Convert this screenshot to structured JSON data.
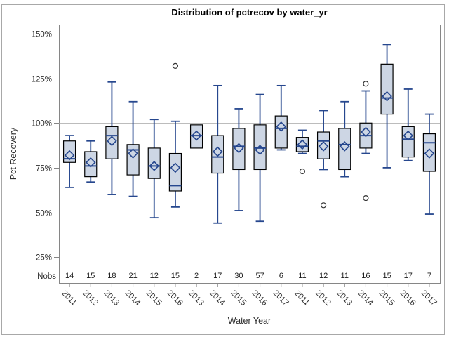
{
  "window": {
    "background": "#ffffff",
    "graph_border_color": "#a8a8a8"
  },
  "chart_data": {
    "type": "boxplot",
    "title": "Distribution of pctrecov by water_yr",
    "xlabel": "Water Year",
    "ylabel": "Pct Recovery",
    "nobs_row_label": "Nobs",
    "ylim": [
      10,
      156
    ],
    "grid": false,
    "legend": "none",
    "reference_line": 100,
    "y_ticks": [
      {
        "value": 150,
        "label": "150%"
      },
      {
        "value": 125,
        "label": "125%"
      },
      {
        "value": 100,
        "label": "100%"
      },
      {
        "value": 75,
        "label": "75%"
      },
      {
        "value": 50,
        "label": "50%"
      },
      {
        "value": 25,
        "label": "25%"
      }
    ],
    "colors": {
      "box_fill": "#cdd6e4",
      "box_border": "#000000",
      "whisker_line": "#26478e",
      "median_line": "#26478e",
      "mean_marker": "#26478e",
      "outlier": "#333333",
      "plot_frame": "#868686",
      "reference_line": "#a6a6a6",
      "tick_text": "#2e2e2e"
    },
    "boxes": [
      {
        "year": "2011",
        "nobs": 14,
        "low": 64,
        "q1": 78,
        "median": 80,
        "mean": 82,
        "q3": 90,
        "high": 93,
        "outliers": []
      },
      {
        "year": "2012",
        "nobs": 15,
        "low": 67,
        "q1": 70,
        "median": 76,
        "mean": 78,
        "q3": 84,
        "high": 90,
        "outliers": []
      },
      {
        "year": "2013",
        "nobs": 18,
        "low": 60,
        "q1": 80,
        "median": 93,
        "mean": 90,
        "q3": 98,
        "high": 123,
        "outliers": []
      },
      {
        "year": "2014",
        "nobs": 21,
        "low": 59,
        "q1": 71,
        "median": 85,
        "mean": 83,
        "q3": 88,
        "high": 112,
        "outliers": []
      },
      {
        "year": "2015",
        "nobs": 12,
        "low": 47,
        "q1": 69,
        "median": 76,
        "mean": 76,
        "q3": 86,
        "high": 102,
        "outliers": []
      },
      {
        "year": "2016",
        "nobs": 15,
        "low": 53,
        "q1": 62,
        "median": 65,
        "mean": 75,
        "q3": 83,
        "high": 101,
        "outliers": [
          132
        ]
      },
      {
        "year": "2013",
        "nobs": 2,
        "low": 86,
        "q1": 86,
        "median": 93,
        "mean": 93,
        "q3": 99,
        "high": 99,
        "outliers": []
      },
      {
        "year": "2014",
        "nobs": 17,
        "low": 44,
        "q1": 72,
        "median": 81,
        "mean": 84,
        "q3": 93,
        "high": 121,
        "outliers": []
      },
      {
        "year": "2015",
        "nobs": 30,
        "low": 51,
        "q1": 74,
        "median": 87,
        "mean": 86,
        "q3": 97,
        "high": 108,
        "outliers": []
      },
      {
        "year": "2016",
        "nobs": 57,
        "low": 45,
        "q1": 74,
        "median": 86,
        "mean": 85,
        "q3": 99,
        "high": 116,
        "outliers": []
      },
      {
        "year": "2017",
        "nobs": 6,
        "low": 85,
        "q1": 86,
        "median": 97,
        "mean": 98,
        "q3": 104,
        "high": 121,
        "outliers": []
      },
      {
        "year": "2011",
        "nobs": 11,
        "low": 83,
        "q1": 84,
        "median": 87,
        "mean": 88,
        "q3": 92,
        "high": 96,
        "outliers": [
          73
        ]
      },
      {
        "year": "2012",
        "nobs": 12,
        "low": 74,
        "q1": 80,
        "median": 90,
        "mean": 87,
        "q3": 95,
        "high": 107,
        "outliers": [
          54
        ]
      },
      {
        "year": "2013",
        "nobs": 11,
        "low": 70,
        "q1": 74,
        "median": 88,
        "mean": 87,
        "q3": 97,
        "high": 112,
        "outliers": []
      },
      {
        "year": "2014",
        "nobs": 16,
        "low": 83,
        "q1": 86,
        "median": 93,
        "mean": 95,
        "q3": 100,
        "high": 118,
        "outliers": [
          122,
          58
        ]
      },
      {
        "year": "2015",
        "nobs": 15,
        "low": 75,
        "q1": 105,
        "median": 114,
        "mean": 115,
        "q3": 133,
        "high": 144,
        "outliers": []
      },
      {
        "year": "2016",
        "nobs": 17,
        "low": 79,
        "q1": 81,
        "median": 91,
        "mean": 93,
        "q3": 98,
        "high": 119,
        "outliers": []
      },
      {
        "year": "2017",
        "nobs": 7,
        "low": 49,
        "q1": 73,
        "median": 89,
        "mean": 83,
        "q3": 94,
        "high": 105,
        "outliers": []
      }
    ]
  }
}
